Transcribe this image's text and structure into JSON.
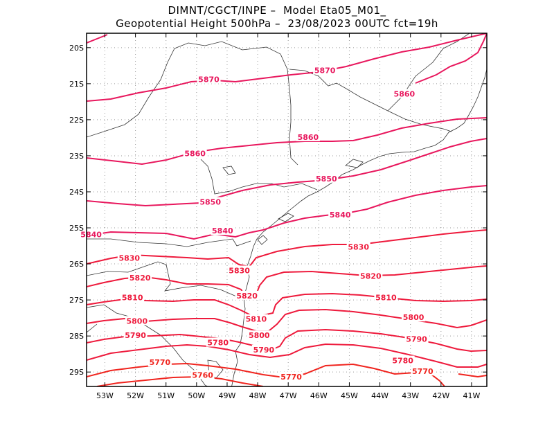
{
  "title_line1": "DIMNT/CGCT/INPE –  Model Eta05_M01_",
  "title_line2": "Geopotential Height 500hPa –  23/08/2023 00UTC fct=19h",
  "x_ticks": [
    "53W",
    "52W",
    "51W",
    "50W",
    "49W",
    "48W",
    "47W",
    "46W",
    "45W",
    "44W",
    "43W",
    "42W",
    "41W"
  ],
  "y_ticks": [
    "20S",
    "21S",
    "22S",
    "23S",
    "24S",
    "25S",
    "26S",
    "27S",
    "28S",
    "29S"
  ],
  "colors": {
    "5870": "#e8175d",
    "5860": "#e8175d",
    "5850": "#e8175d",
    "5840": "#e8175d",
    "5830": "#ee1a3c",
    "5820": "#ee1a3c",
    "5810": "#ee1a3c",
    "5800": "#ee1a3c",
    "5790": "#ee1a3c",
    "5780": "#ee1a3c",
    "5770": "#f0241e",
    "5760": "#f0241e"
  },
  "contours": [
    {
      "value": "5870",
      "label_positions": [
        {
          "lon": -49.6,
          "lat": -20.9
        },
        {
          "lon": -45.8,
          "lat": -20.65
        }
      ]
    },
    {
      "value": "5860",
      "label_positions": [
        {
          "lon": -50.05,
          "lat": -22.95
        },
        {
          "lon": -46.35,
          "lat": -22.5
        },
        {
          "lon": -43.2,
          "lat": -21.3
        }
      ]
    },
    {
      "value": "5850",
      "label_positions": [
        {
          "lon": -49.55,
          "lat": -24.3
        },
        {
          "lon": -45.75,
          "lat": -23.65
        }
      ]
    },
    {
      "value": "5840",
      "label_positions": [
        {
          "lon": -53.45,
          "lat": -25.2
        },
        {
          "lon": -49.15,
          "lat": -25.1
        },
        {
          "lon": -45.3,
          "lat": -24.65
        }
      ]
    },
    {
      "value": "5830",
      "label_positions": [
        {
          "lon": -52.2,
          "lat": -25.85
        },
        {
          "lon": -48.6,
          "lat": -26.2
        },
        {
          "lon": -44.7,
          "lat": -25.55
        }
      ]
    },
    {
      "value": "5820",
      "label_positions": [
        {
          "lon": -51.85,
          "lat": -26.4
        },
        {
          "lon": -48.35,
          "lat": -26.9
        },
        {
          "lon": -44.3,
          "lat": -26.35
        }
      ]
    },
    {
      "value": "5810",
      "label_positions": [
        {
          "lon": -52.1,
          "lat": -26.95
        },
        {
          "lon": -48.05,
          "lat": -27.55
        },
        {
          "lon": -43.8,
          "lat": -26.95
        }
      ]
    },
    {
      "value": "5800",
      "label_positions": [
        {
          "lon": -51.95,
          "lat": -27.6
        },
        {
          "lon": -47.95,
          "lat": -28.0
        },
        {
          "lon": -42.9,
          "lat": -27.5
        }
      ]
    },
    {
      "value": "5790",
      "label_positions": [
        {
          "lon": -52.0,
          "lat": -28.0
        },
        {
          "lon": -47.8,
          "lat": -28.4
        },
        {
          "lon": -42.8,
          "lat": -28.1
        }
      ]
    },
    {
      "value": "5780",
      "label_positions": [
        {
          "lon": -49.3,
          "lat": -28.2
        },
        {
          "lon": -43.25,
          "lat": -28.7
        }
      ]
    },
    {
      "value": "5770",
      "label_positions": [
        {
          "lon": -51.2,
          "lat": -28.75
        },
        {
          "lon": -46.9,
          "lat": -29.15
        },
        {
          "lon": -42.6,
          "lat": -29.0
        }
      ]
    },
    {
      "value": "5760",
      "label_positions": [
        {
          "lon": -49.8,
          "lat": -29.1
        }
      ]
    }
  ]
}
